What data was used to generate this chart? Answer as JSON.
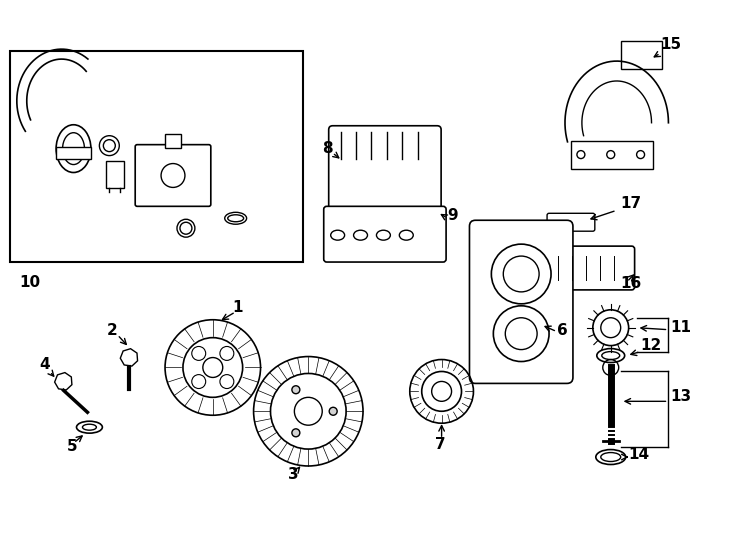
{
  "bg_color": "#ffffff",
  "line_color": "#000000",
  "figsize": [
    7.34,
    5.4
  ],
  "dpi": 100,
  "xlim": [
    0,
    7.34
  ],
  "ylim": [
    0,
    5.4
  ]
}
